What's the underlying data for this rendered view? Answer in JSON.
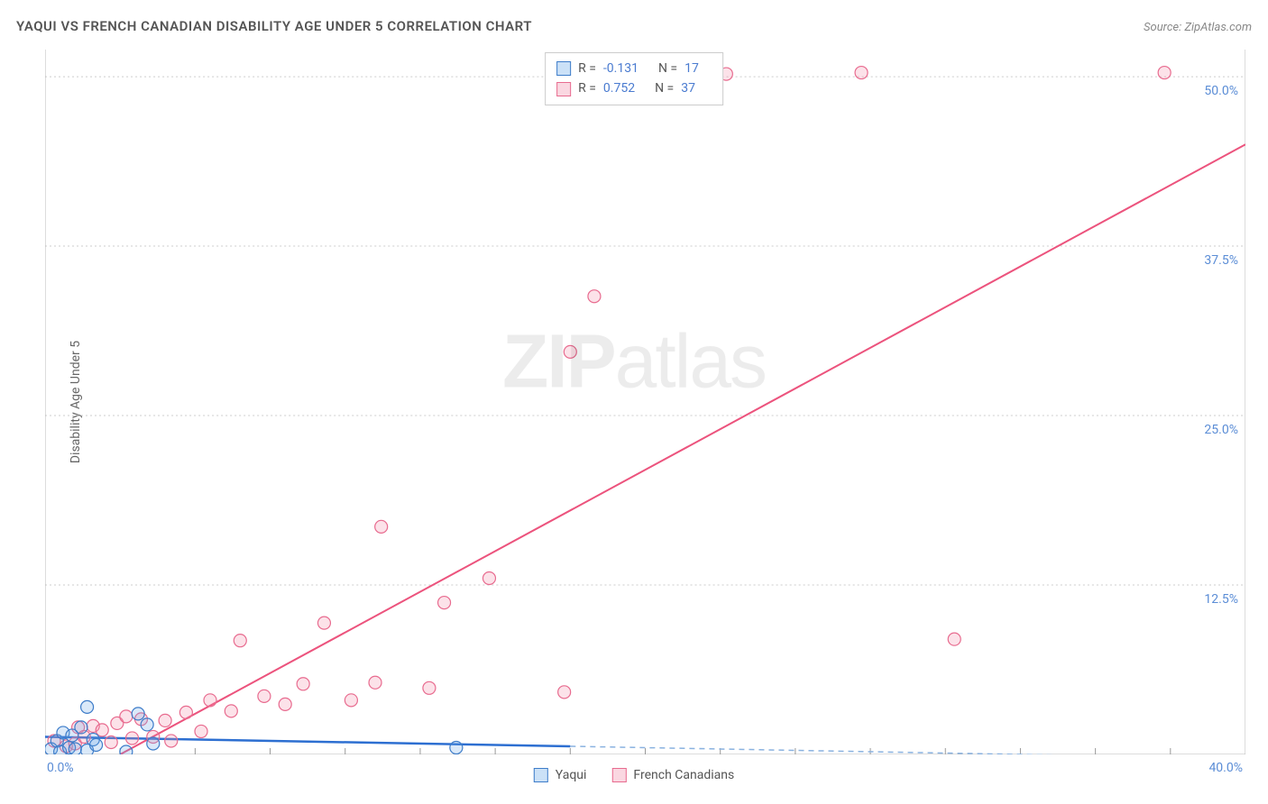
{
  "header": {
    "title": "YAQUI VS FRENCH CANADIAN DISABILITY AGE UNDER 5 CORRELATION CHART",
    "source_prefix": "Source: ",
    "source_name": "ZipAtlas.com"
  },
  "watermark": {
    "bold": "ZIP",
    "light": "atlas"
  },
  "chart": {
    "type": "scatter",
    "y_axis_label": "Disability Age Under 5",
    "xlim": [
      0,
      40
    ],
    "ylim": [
      0,
      52
    ],
    "x_tick_start_label": "0.0%",
    "x_tick_end_label": "40.0%",
    "x_minor_ticks": [
      2.5,
      5,
      7.5,
      10,
      12.5,
      15,
      17.5,
      20,
      22.5,
      25,
      27.5,
      30,
      32.5,
      35,
      37.5
    ],
    "y_ticks": [
      {
        "v": 12.5,
        "label": "12.5%"
      },
      {
        "v": 25.0,
        "label": "25.0%"
      },
      {
        "v": 37.5,
        "label": "37.5%"
      },
      {
        "v": 50.0,
        "label": "50.0%"
      }
    ],
    "background_color": "#ffffff",
    "grid_color": "#cccccc",
    "series": [
      {
        "key": "yaqui",
        "label": "Yaqui",
        "marker_color": "#6aa8e8",
        "marker_stroke": "#3d7cc9",
        "marker_radius": 7,
        "trend_color": "#2d6fd1",
        "R": "-0.131",
        "N": "17",
        "trend": {
          "x1": 0,
          "y1": 1.3,
          "x2": 17.5,
          "y2": 0.6,
          "dash_x2": 40,
          "dash_y2": -0.3
        },
        "points": [
          [
            0.2,
            0.4
          ],
          [
            0.4,
            1.0
          ],
          [
            0.5,
            0.2
          ],
          [
            0.6,
            1.6
          ],
          [
            0.8,
            0.5
          ],
          [
            0.9,
            1.4
          ],
          [
            1.0,
            0.4
          ],
          [
            1.2,
            2.0
          ],
          [
            1.4,
            0.3
          ],
          [
            1.6,
            1.1
          ],
          [
            1.7,
            0.7
          ],
          [
            1.4,
            3.5
          ],
          [
            2.7,
            0.2
          ],
          [
            3.1,
            3.0
          ],
          [
            3.4,
            2.2
          ],
          [
            3.6,
            0.8
          ],
          [
            13.7,
            0.5
          ]
        ]
      },
      {
        "key": "french",
        "label": "French Canadians",
        "marker_color": "#f28ca8",
        "marker_stroke": "#e86b8f",
        "marker_radius": 7,
        "trend_color": "#ec537d",
        "R": "0.752",
        "N": "37",
        "trend": {
          "x1": 2.5,
          "y1": 0,
          "x2": 40,
          "y2": 45.0
        },
        "points": [
          [
            0.3,
            1.0
          ],
          [
            0.7,
            0.6
          ],
          [
            1.0,
            0.8
          ],
          [
            1.1,
            2.0
          ],
          [
            1.3,
            1.3
          ],
          [
            1.6,
            2.1
          ],
          [
            1.9,
            1.8
          ],
          [
            2.2,
            0.9
          ],
          [
            2.4,
            2.3
          ],
          [
            2.7,
            2.8
          ],
          [
            2.9,
            1.2
          ],
          [
            3.2,
            2.6
          ],
          [
            3.6,
            1.3
          ],
          [
            4.0,
            2.5
          ],
          [
            4.2,
            1.0
          ],
          [
            4.7,
            3.1
          ],
          [
            5.2,
            1.7
          ],
          [
            5.5,
            4.0
          ],
          [
            6.2,
            3.2
          ],
          [
            6.5,
            8.4
          ],
          [
            7.3,
            4.3
          ],
          [
            8.0,
            3.7
          ],
          [
            8.6,
            5.2
          ],
          [
            9.3,
            9.7
          ],
          [
            10.2,
            4.0
          ],
          [
            11.0,
            5.3
          ],
          [
            11.2,
            16.8
          ],
          [
            12.8,
            4.9
          ],
          [
            13.3,
            11.2
          ],
          [
            14.8,
            13.0
          ],
          [
            17.3,
            4.6
          ],
          [
            17.5,
            29.7
          ],
          [
            18.3,
            33.8
          ],
          [
            22.7,
            50.2
          ],
          [
            27.2,
            50.3
          ],
          [
            30.3,
            8.5
          ],
          [
            37.3,
            50.3
          ]
        ]
      }
    ]
  },
  "top_legend": {
    "r_label": "R =",
    "n_label": "N ="
  }
}
